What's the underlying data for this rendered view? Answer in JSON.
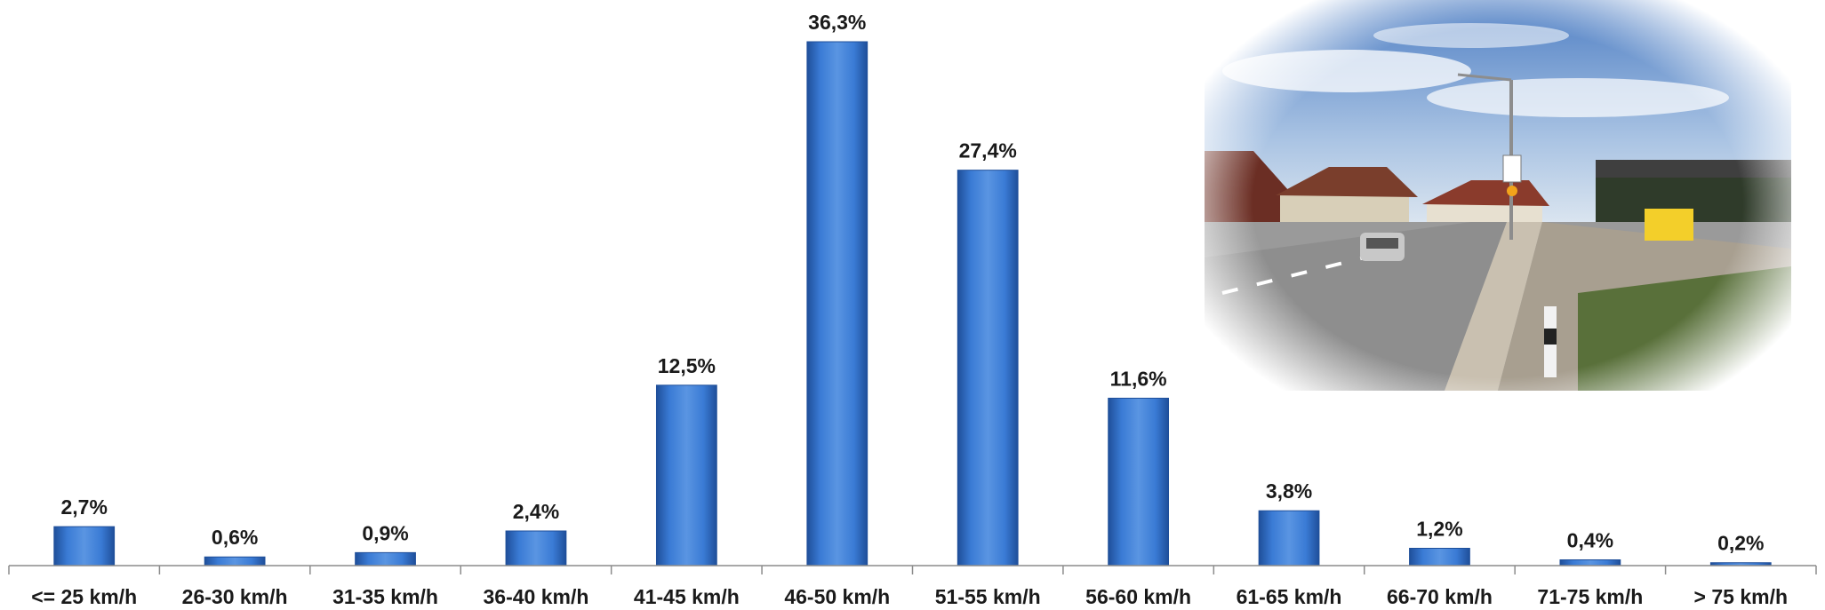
{
  "chart_data": {
    "type": "bar",
    "categories": [
      "<= 25 km/h",
      "26-30 km/h",
      "31-35 km/h",
      "36-40 km/h",
      "41-45 km/h",
      "46-50 km/h",
      "51-55 km/h",
      "56-60 km/h",
      "61-65 km/h",
      "66-70 km/h",
      "71-75 km/h",
      "> 75 km/h"
    ],
    "values": [
      2.7,
      0.6,
      0.9,
      2.4,
      12.5,
      36.3,
      27.4,
      11.6,
      3.8,
      1.2,
      0.4,
      0.2
    ],
    "value_labels": [
      "2,7%",
      "0,6%",
      "0,9%",
      "2,4%",
      "12,5%",
      "36,3%",
      "27,4%",
      "11,6%",
      "3,8%",
      "1,2%",
      "0,4%",
      "0,2%"
    ],
    "title": "",
    "xlabel": "",
    "ylabel": "",
    "ylim": [
      0,
      36.3
    ],
    "grid": false,
    "legend": "none",
    "bar_color": "#3a7bd5",
    "bar_color_dark": "#1f4f9a"
  }
}
